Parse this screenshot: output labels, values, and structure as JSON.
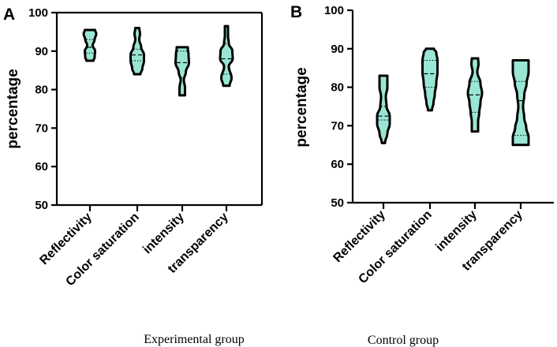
{
  "chart_data": [
    {
      "type": "violin",
      "panel_label": "A",
      "caption": "Experimental group",
      "ylabel": "percentage",
      "ylim": [
        50,
        100
      ],
      "yticks": [
        "50",
        "60",
        "70",
        "80",
        "90",
        "100"
      ],
      "categories": [
        "Reflectivity",
        "Color saturation",
        "intensity",
        "transparency"
      ],
      "series": [
        {
          "name": "Reflectivity",
          "min": 87.5,
          "max": 95.5,
          "q1": 89.5,
          "median": 91,
          "q3": 93,
          "profile": [
            [
              87.5,
              4.5
            ],
            [
              88.5,
              6
            ],
            [
              90,
              6.5
            ],
            [
              91.5,
              3.5
            ],
            [
              93,
              6
            ],
            [
              94.5,
              8
            ],
            [
              95.5,
              6.5
            ]
          ]
        },
        {
          "name": "Color saturation",
          "min": 84,
          "max": 96,
          "q1": 87.5,
          "median": 89,
          "q3": 90.5,
          "profile": [
            [
              84,
              4
            ],
            [
              85.5,
              6.5
            ],
            [
              87.5,
              8.5
            ],
            [
              89,
              8.5
            ],
            [
              91,
              5
            ],
            [
              93,
              2.5
            ],
            [
              94.5,
              3.5
            ],
            [
              96,
              2.5
            ]
          ]
        },
        {
          "name": "intensity",
          "min": 78.5,
          "max": 91,
          "q1": 83,
          "median": 87,
          "q3": 90,
          "profile": [
            [
              78.5,
              3.5
            ],
            [
              80.5,
              3.5
            ],
            [
              82.5,
              2
            ],
            [
              84.5,
              4.5
            ],
            [
              87,
              8.5
            ],
            [
              89,
              8
            ],
            [
              91,
              7
            ]
          ]
        },
        {
          "name": "transparency",
          "min": 81,
          "max": 96.5,
          "q1": 84,
          "median": 88,
          "q3": 92,
          "profile": [
            [
              81,
              4
            ],
            [
              83,
              6.5
            ],
            [
              86,
              3
            ],
            [
              88,
              8
            ],
            [
              90,
              7.5
            ],
            [
              92,
              3
            ],
            [
              94,
              2
            ],
            [
              96.5,
              2
            ]
          ]
        }
      ]
    },
    {
      "type": "violin",
      "panel_label": "B",
      "caption": "Control group",
      "ylabel": "percentage",
      "ylim": [
        50,
        100
      ],
      "yticks": [
        "50",
        "60",
        "70",
        "80",
        "90",
        "100"
      ],
      "categories": [
        "Reflectivity",
        "Color saturation",
        "intensity",
        "transparency"
      ],
      "series": [
        {
          "name": "Reflectivity",
          "min": 65.5,
          "max": 83,
          "q1": 71.5,
          "median": 72.5,
          "q3": 75,
          "profile": [
            [
              65.5,
              2
            ],
            [
              68,
              5
            ],
            [
              70.5,
              8
            ],
            [
              72.5,
              8
            ],
            [
              75,
              4
            ],
            [
              77.5,
              3
            ],
            [
              80,
              5
            ],
            [
              83,
              5
            ]
          ]
        },
        {
          "name": "Color saturation",
          "min": 74,
          "max": 90,
          "q1": 80,
          "median": 83.5,
          "q3": 87,
          "profile": [
            [
              74,
              2.5
            ],
            [
              76,
              4.5
            ],
            [
              78,
              6
            ],
            [
              81,
              8
            ],
            [
              84,
              9.5
            ],
            [
              87,
              9.5
            ],
            [
              89,
              8
            ],
            [
              90,
              5
            ]
          ]
        },
        {
          "name": "intensity",
          "min": 68.5,
          "max": 87.5,
          "q1": 73.5,
          "median": 78,
          "q3": 81.5,
          "profile": [
            [
              68.5,
              4
            ],
            [
              71,
              4
            ],
            [
              73.5,
              5.5
            ],
            [
              76,
              7
            ],
            [
              78.5,
              9
            ],
            [
              81,
              7
            ],
            [
              84,
              3
            ],
            [
              86,
              4.5
            ],
            [
              87.5,
              4
            ]
          ]
        },
        {
          "name": "transparency",
          "min": 65,
          "max": 87,
          "q1": 67.5,
          "median": 76.5,
          "q3": 81.5,
          "profile": [
            [
              65,
              10
            ],
            [
              67,
              10
            ],
            [
              69.5,
              7
            ],
            [
              72,
              4.5
            ],
            [
              75,
              3
            ],
            [
              78,
              4.5
            ],
            [
              81,
              7.5
            ],
            [
              84,
              10
            ],
            [
              87,
              10
            ]
          ]
        }
      ]
    }
  ]
}
